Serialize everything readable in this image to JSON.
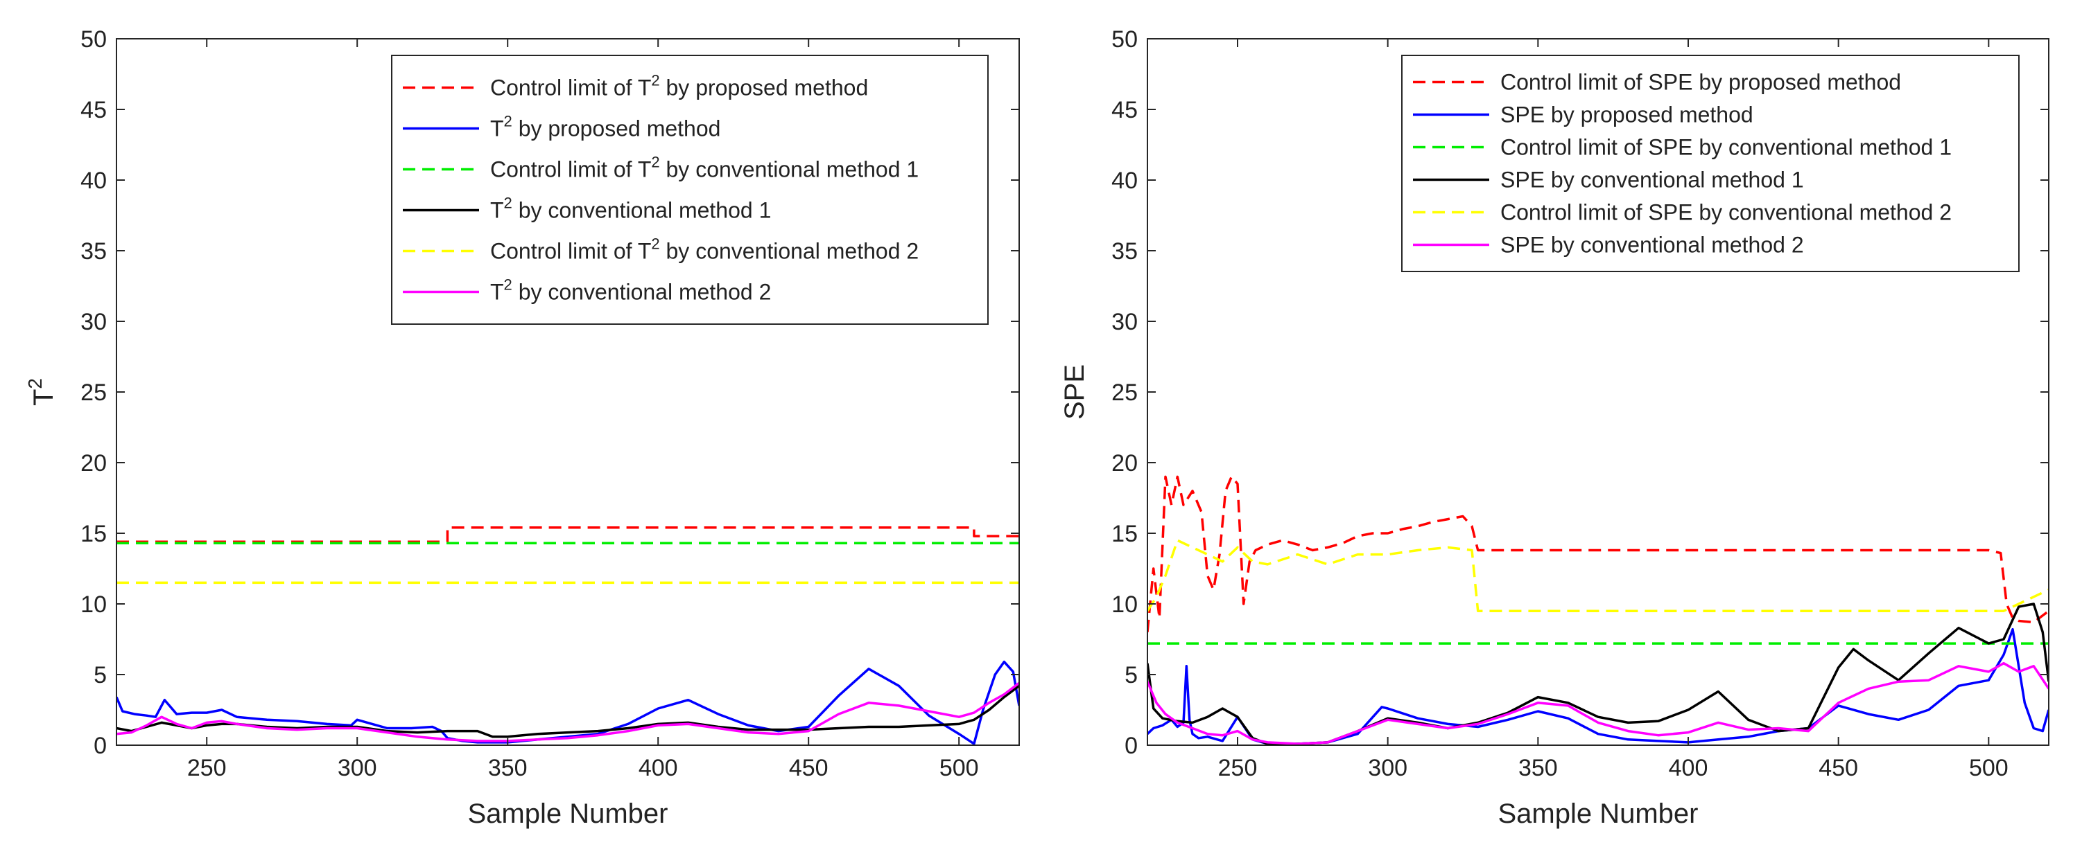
{
  "chart_data": [
    {
      "type": "line",
      "xlabel": "Sample Number",
      "ylabel_base": "T",
      "ylabel_sup": "2",
      "xlim": [
        220,
        520
      ],
      "ylim": [
        0,
        50
      ],
      "xticks": [
        250,
        300,
        350,
        400,
        450,
        500
      ],
      "yticks": [
        0,
        5,
        10,
        15,
        20,
        25,
        30,
        35,
        40,
        45,
        50
      ],
      "grid": false,
      "legend_position": "top-right",
      "series": [
        {
          "name": "Control limit of T2 by proposed method",
          "label_parts": [
            "Control limit of T",
            "2",
            " by proposed method"
          ],
          "color": "#ff0000",
          "dash": true,
          "x": [
            220,
            330,
            330,
            505,
            505,
            520
          ],
          "y": [
            14.4,
            14.4,
            15.4,
            15.4,
            14.8,
            14.8
          ]
        },
        {
          "name": "T2 by proposed method",
          "label_parts": [
            "T",
            "2",
            " by proposed method"
          ],
          "color": "#0000ff",
          "dash": false,
          "x": [
            220,
            222,
            226,
            230,
            233,
            236,
            240,
            245,
            250,
            255,
            260,
            270,
            280,
            290,
            298,
            300,
            305,
            310,
            318,
            325,
            328,
            330,
            335,
            340,
            350,
            360,
            370,
            380,
            390,
            400,
            410,
            420,
            430,
            440,
            450,
            460,
            470,
            480,
            490,
            500,
            505,
            508,
            512,
            515,
            518,
            520
          ],
          "y": [
            3.4,
            2.4,
            2.2,
            2.1,
            2.0,
            3.2,
            2.2,
            2.3,
            2.3,
            2.5,
            2.0,
            1.8,
            1.7,
            1.5,
            1.4,
            1.8,
            1.5,
            1.2,
            1.2,
            1.3,
            1.0,
            0.5,
            0.3,
            0.2,
            0.2,
            0.4,
            0.6,
            0.8,
            1.5,
            2.6,
            3.2,
            2.2,
            1.4,
            1.0,
            1.3,
            3.5,
            5.4,
            4.2,
            2.1,
            0.8,
            0.1,
            2.5,
            5.0,
            5.9,
            5.2,
            2.8
          ]
        },
        {
          "name": "Control limit of T2 by conventional method 1",
          "label_parts": [
            "Control limit of T",
            "2",
            " by conventional method 1"
          ],
          "color": "#00ee00",
          "dash": true,
          "x": [
            220,
            520
          ],
          "y": [
            14.3,
            14.3
          ]
        },
        {
          "name": "T2 by conventional method 1",
          "label_parts": [
            "T",
            "2",
            " by conventional method 1"
          ],
          "color": "#000000",
          "dash": false,
          "x": [
            220,
            225,
            230,
            235,
            240,
            245,
            250,
            255,
            260,
            270,
            280,
            290,
            300,
            310,
            320,
            330,
            340,
            345,
            350,
            360,
            370,
            380,
            390,
            400,
            410,
            420,
            430,
            440,
            450,
            460,
            470,
            480,
            490,
            500,
            505,
            510,
            515,
            520
          ],
          "y": [
            1.2,
            1.0,
            1.3,
            1.6,
            1.4,
            1.2,
            1.4,
            1.5,
            1.5,
            1.3,
            1.2,
            1.3,
            1.3,
            1.0,
            0.9,
            1.0,
            1.0,
            0.6,
            0.6,
            0.8,
            0.9,
            1.0,
            1.2,
            1.5,
            1.6,
            1.3,
            1.1,
            1.1,
            1.1,
            1.2,
            1.3,
            1.3,
            1.4,
            1.5,
            1.8,
            2.5,
            3.4,
            4.2
          ]
        },
        {
          "name": "Control limit of T2 by conventional method 2",
          "label_parts": [
            "Control limit of T",
            "2",
            " by conventional method 2"
          ],
          "color": "#ffff00",
          "dash": true,
          "x": [
            220,
            520
          ],
          "y": [
            11.5,
            11.5
          ]
        },
        {
          "name": "T2 by conventional method 2",
          "label_parts": [
            "T",
            "2",
            " by conventional method 2"
          ],
          "color": "#ff00ff",
          "dash": false,
          "x": [
            220,
            225,
            230,
            235,
            240,
            245,
            250,
            255,
            260,
            270,
            280,
            290,
            300,
            310,
            320,
            330,
            340,
            350,
            360,
            370,
            380,
            390,
            400,
            410,
            420,
            430,
            440,
            450,
            460,
            470,
            480,
            490,
            500,
            505,
            510,
            515,
            520
          ],
          "y": [
            0.8,
            0.9,
            1.4,
            2.0,
            1.5,
            1.2,
            1.6,
            1.7,
            1.5,
            1.2,
            1.1,
            1.2,
            1.2,
            0.9,
            0.6,
            0.4,
            0.3,
            0.3,
            0.4,
            0.5,
            0.7,
            1.0,
            1.4,
            1.5,
            1.2,
            0.9,
            0.8,
            1.0,
            2.2,
            3.0,
            2.8,
            2.4,
            2.0,
            2.3,
            3.0,
            3.6,
            4.4
          ]
        }
      ]
    },
    {
      "type": "line",
      "xlabel": "Sample Number",
      "ylabel_base": "SPE",
      "ylabel_sup": "",
      "xlim": [
        220,
        520
      ],
      "ylim": [
        0,
        50
      ],
      "xticks": [
        250,
        300,
        350,
        400,
        450,
        500
      ],
      "yticks": [
        0,
        5,
        10,
        15,
        20,
        25,
        30,
        35,
        40,
        45,
        50
      ],
      "grid": false,
      "legend_position": "top-right",
      "series": [
        {
          "name": "Control limit of SPE by proposed method",
          "label_parts": [
            "Control limit of SPE by proposed method",
            "",
            ""
          ],
          "color": "#ff0000",
          "dash": true,
          "x": [
            220,
            222,
            224,
            226,
            228,
            230,
            232,
            235,
            238,
            240,
            242,
            244,
            246,
            248,
            250,
            252,
            254,
            256,
            258,
            260,
            265,
            270,
            275,
            280,
            285,
            290,
            295,
            300,
            305,
            310,
            315,
            320,
            325,
            328,
            330,
            335,
            340,
            350,
            400,
            450,
            500,
            504,
            506,
            508,
            510,
            515,
            520
          ],
          "y": [
            8.0,
            12.5,
            9.0,
            19.0,
            17.0,
            19.0,
            17.0,
            18.0,
            16.5,
            12.0,
            11.0,
            13.5,
            18.0,
            19.0,
            18.5,
            10.0,
            13.0,
            13.8,
            14.0,
            14.2,
            14.5,
            14.2,
            13.8,
            14.0,
            14.3,
            14.8,
            15.0,
            15.0,
            15.3,
            15.5,
            15.8,
            16.0,
            16.2,
            15.5,
            13.8,
            13.8,
            13.8,
            13.8,
            13.8,
            13.8,
            13.8,
            13.6,
            10.0,
            9.0,
            8.8,
            8.7,
            9.5
          ]
        },
        {
          "name": "SPE by proposed method",
          "label_parts": [
            "SPE by proposed method",
            "",
            ""
          ],
          "color": "#0000ff",
          "dash": false,
          "x": [
            220,
            222,
            225,
            228,
            230,
            232,
            233,
            234,
            235,
            237,
            240,
            245,
            250,
            255,
            260,
            270,
            280,
            290,
            298,
            300,
            310,
            320,
            330,
            340,
            350,
            360,
            370,
            380,
            390,
            400,
            410,
            420,
            430,
            440,
            450,
            460,
            470,
            480,
            490,
            500,
            505,
            508,
            512,
            515,
            518,
            520
          ],
          "y": [
            0.8,
            1.2,
            1.4,
            1.8,
            1.3,
            1.6,
            5.6,
            1.8,
            0.8,
            0.5,
            0.6,
            0.3,
            2.0,
            0.4,
            0.1,
            0.1,
            0.2,
            0.8,
            2.7,
            2.6,
            1.9,
            1.5,
            1.3,
            1.8,
            2.4,
            1.9,
            0.8,
            0.4,
            0.3,
            0.2,
            0.4,
            0.6,
            1.0,
            1.2,
            2.8,
            2.2,
            1.8,
            2.5,
            4.2,
            4.6,
            6.4,
            8.2,
            3.0,
            1.2,
            1.0,
            2.5
          ]
        },
        {
          "name": "Control limit of SPE by conventional method 1",
          "label_parts": [
            "Control limit of SPE by conventional method 1",
            "",
            ""
          ],
          "color": "#00ee00",
          "dash": true,
          "x": [
            220,
            520
          ],
          "y": [
            7.2,
            7.2
          ]
        },
        {
          "name": "SPE by conventional method 1",
          "label_parts": [
            "SPE by conventional method 1",
            "",
            ""
          ],
          "color": "#000000",
          "dash": false,
          "x": [
            220,
            222,
            225,
            230,
            235,
            240,
            245,
            250,
            255,
            260,
            270,
            280,
            290,
            300,
            310,
            320,
            330,
            340,
            350,
            360,
            370,
            380,
            390,
            400,
            410,
            420,
            430,
            440,
            450,
            455,
            460,
            470,
            480,
            490,
            500,
            505,
            510,
            515,
            518,
            520
          ],
          "y": [
            5.8,
            2.6,
            1.9,
            1.7,
            1.6,
            2.0,
            2.6,
            2.0,
            0.5,
            0.1,
            0.1,
            0.2,
            1.0,
            1.9,
            1.6,
            1.2,
            1.6,
            2.3,
            3.4,
            3.0,
            2.0,
            1.6,
            1.7,
            2.5,
            3.8,
            1.8,
            1.0,
            1.2,
            5.5,
            6.8,
            6.0,
            4.6,
            6.5,
            8.3,
            7.2,
            7.5,
            9.8,
            10.0,
            8.0,
            4.5
          ]
        },
        {
          "name": "Control limit of SPE by conventional method 2",
          "label_parts": [
            "Control limit of SPE by conventional method 2",
            "",
            ""
          ],
          "color": "#ffff00",
          "dash": true,
          "x": [
            220,
            223,
            226,
            230,
            235,
            240,
            245,
            250,
            255,
            260,
            270,
            280,
            290,
            300,
            310,
            320,
            328,
            330,
            340,
            400,
            450,
            505,
            510,
            515,
            520
          ],
          "y": [
            9.5,
            10.5,
            12.0,
            14.5,
            14.0,
            13.5,
            13.0,
            14.0,
            13.0,
            12.8,
            13.5,
            12.8,
            13.5,
            13.5,
            13.8,
            14.0,
            13.8,
            9.5,
            9.5,
            9.5,
            9.5,
            9.5,
            10.0,
            10.5,
            11.0
          ]
        },
        {
          "name": "SPE by conventional method 2",
          "label_parts": [
            "SPE by conventional method 2",
            "",
            ""
          ],
          "color": "#ff00ff",
          "dash": false,
          "x": [
            220,
            223,
            226,
            230,
            235,
            240,
            245,
            250,
            255,
            260,
            270,
            280,
            290,
            300,
            310,
            320,
            330,
            340,
            350,
            360,
            370,
            380,
            390,
            400,
            410,
            420,
            430,
            440,
            450,
            460,
            470,
            480,
            490,
            500,
            505,
            510,
            515,
            520
          ],
          "y": [
            4.5,
            3.0,
            2.2,
            1.6,
            1.2,
            0.8,
            0.7,
            1.0,
            0.4,
            0.2,
            0.1,
            0.2,
            1.0,
            1.8,
            1.5,
            1.2,
            1.5,
            2.2,
            3.0,
            2.8,
            1.6,
            1.0,
            0.7,
            0.9,
            1.6,
            1.1,
            1.2,
            1.0,
            3.0,
            4.0,
            4.5,
            4.6,
            5.6,
            5.2,
            5.8,
            5.2,
            5.6,
            4.0
          ]
        }
      ]
    }
  ]
}
